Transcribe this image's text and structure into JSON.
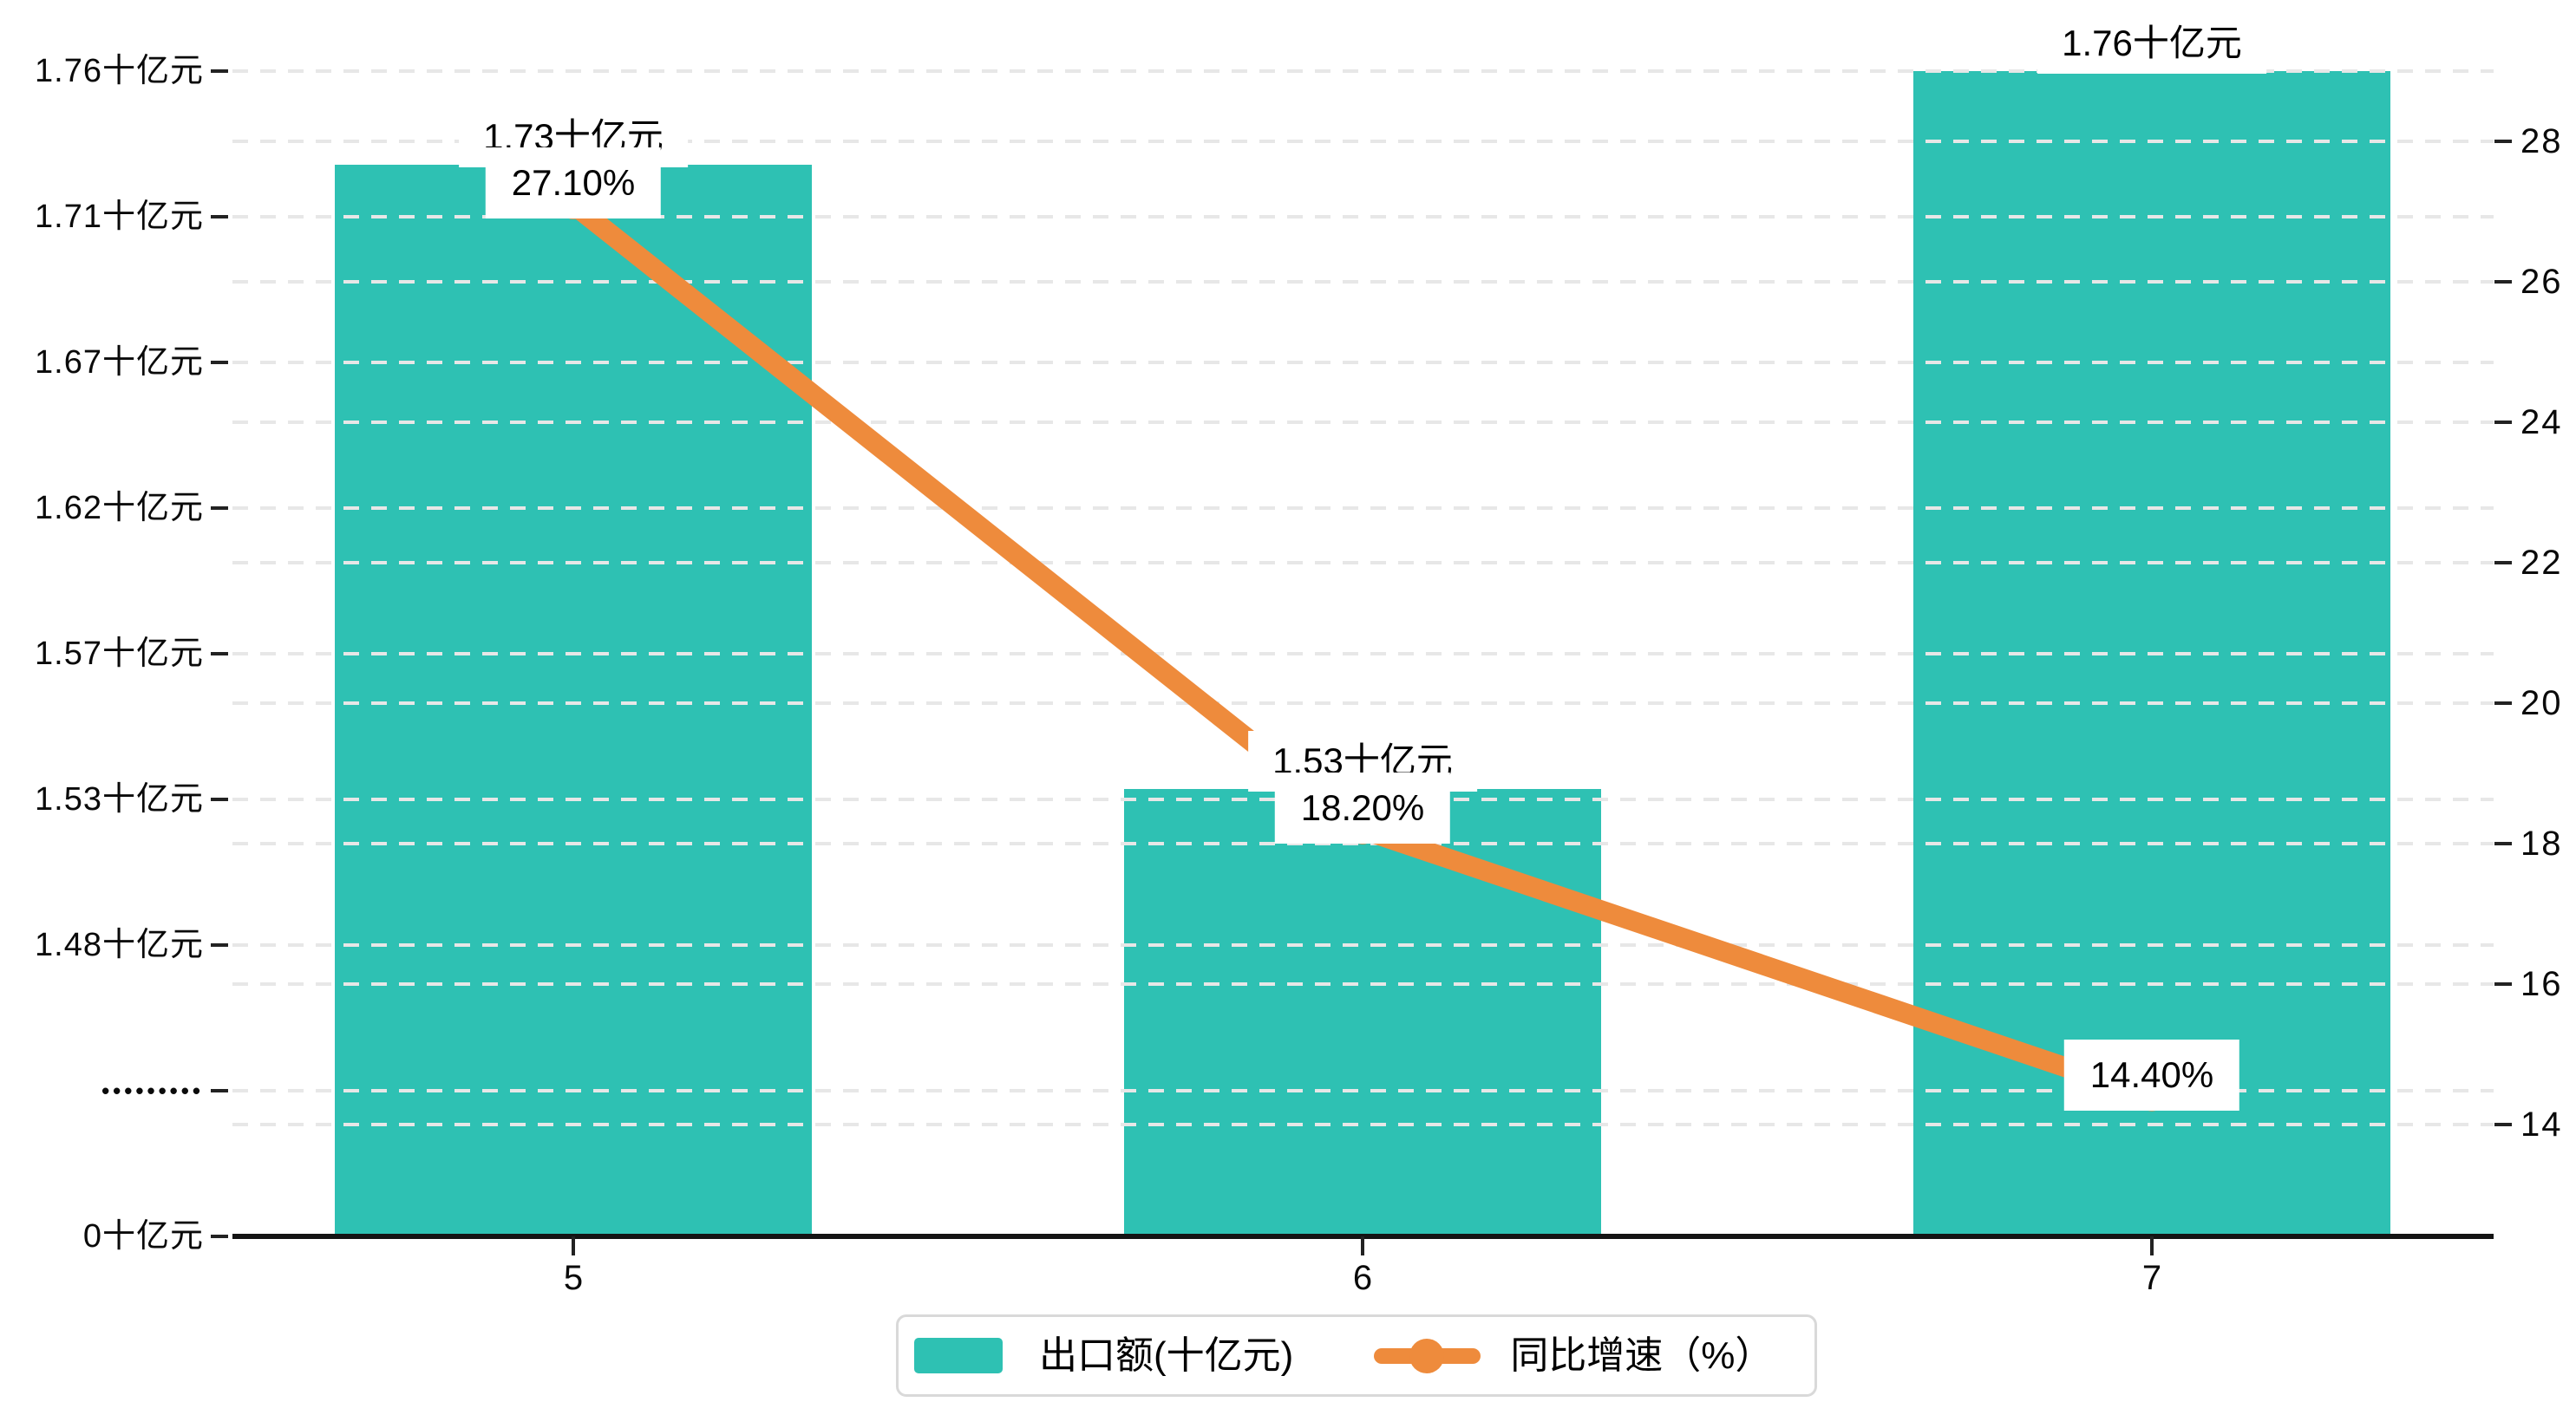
{
  "chart_data": {
    "type": "bar",
    "subtype": "dual-axis bar + line combo",
    "categories": [
      "5",
      "6",
      "7"
    ],
    "series": [
      {
        "name": "出口额(十亿元)",
        "type": "bar",
        "axis": "left",
        "color": "#2ec1b3",
        "values": [
          1.73,
          1.53,
          1.76
        ],
        "data_labels": [
          "1.73十亿元",
          "1.53十亿元",
          "1.76十亿元"
        ]
      },
      {
        "name": "同比增速（%）",
        "type": "line",
        "axis": "right",
        "color": "#ee8b3c",
        "values": [
          27.1,
          18.2,
          14.4
        ],
        "data_labels": [
          "27.10%",
          "18.20%",
          "14.40%"
        ]
      }
    ],
    "left_axis": {
      "tick_labels": [
        "1.76十亿元",
        "1.71十亿元",
        "1.67十亿元",
        "1.62十亿元",
        "1.57十亿元",
        "1.53十亿元",
        "1.48十亿元",
        "•••••••••",
        "0十亿元"
      ],
      "axis_break": true,
      "top_value": 1.76,
      "labeled_bottom_value": 1.48,
      "unit": "十亿元"
    },
    "right_axis": {
      "tick_labels": [
        "28",
        "26",
        "24",
        "22",
        "20",
        "18",
        "16",
        "14"
      ],
      "max": 28,
      "min": 14,
      "unit": "%"
    },
    "x_axis": {
      "tick_labels": [
        "5",
        "6",
        "7"
      ]
    },
    "legend": {
      "position": "bottom-center",
      "items": [
        "出口额(十亿元)",
        "同比增速（%）"
      ]
    },
    "grid": "horizontal dashed gridlines for both axes",
    "background": "#ffffff",
    "gridline_color": "#e7e7e7",
    "axis_line_color": "#141414"
  }
}
